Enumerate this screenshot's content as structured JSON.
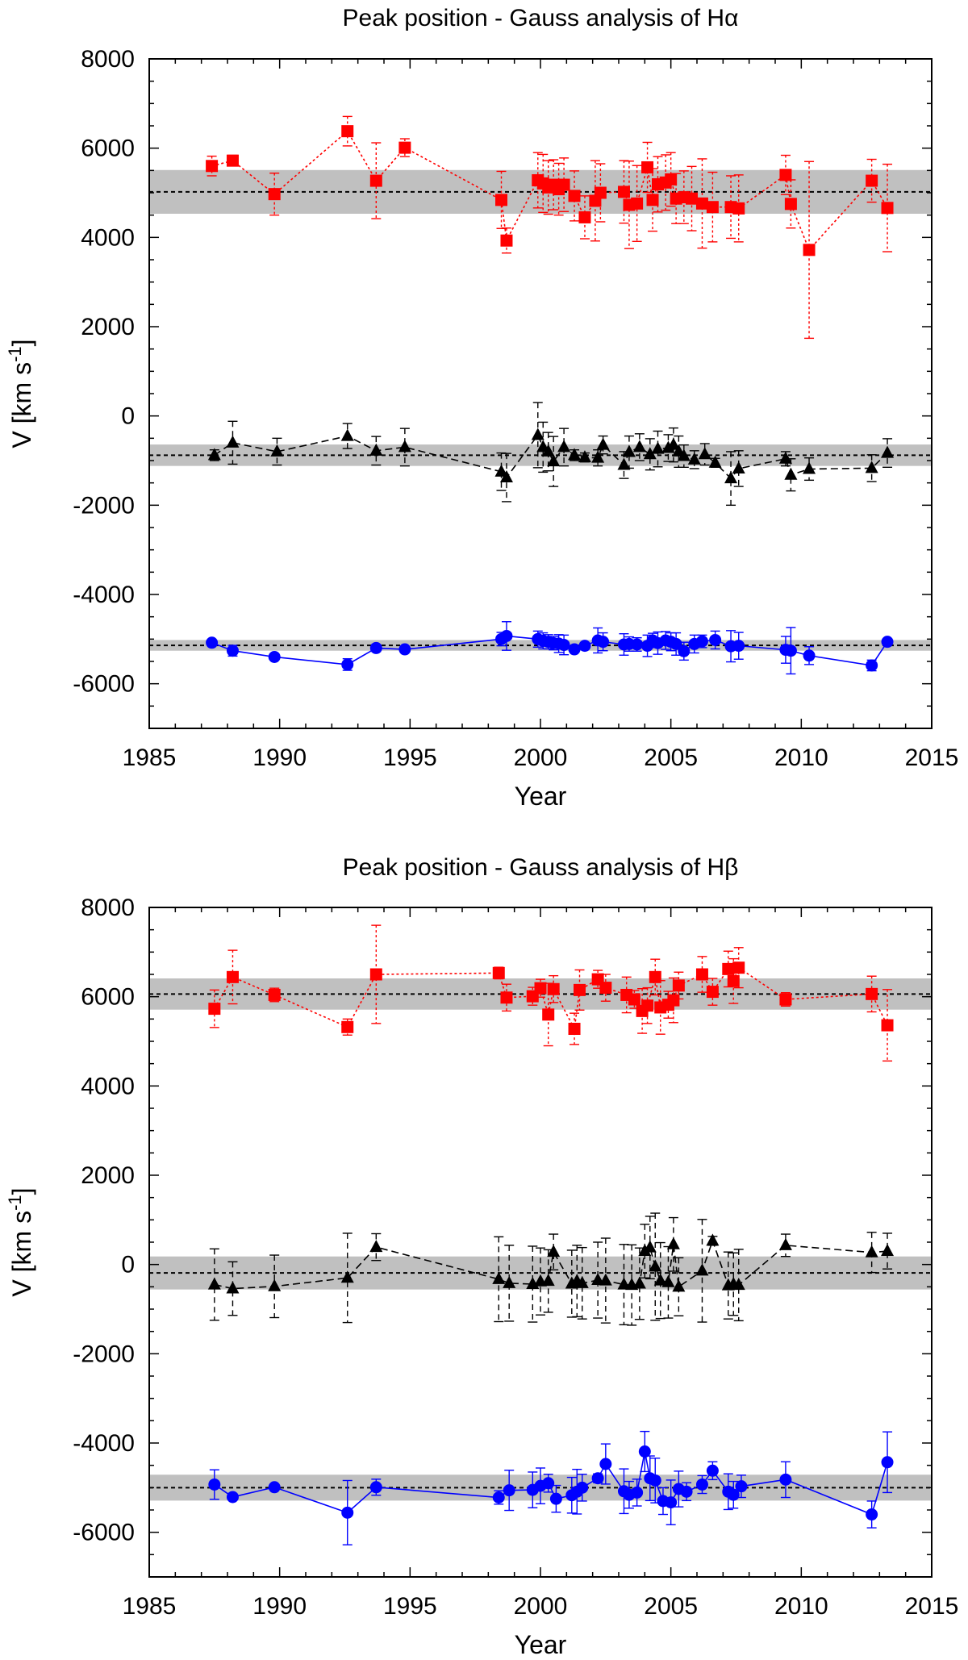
{
  "chart_data": [
    {
      "type": "scatter",
      "title": "Peak position - Gauss analysis of Hα",
      "xlabel": "Year",
      "ylabel": "V [km s",
      "ylabel_sup": "-1",
      "ylabel_close": "]",
      "xlim": [
        1985,
        2015
      ],
      "ylim": [
        -7000,
        8000
      ],
      "x_ticks": [
        "1985",
        "1990",
        "1995",
        "2000",
        "2005",
        "2010",
        "2015"
      ],
      "y_ticks": [
        "8000",
        "6000",
        "4000",
        "2000",
        "0",
        "-2000",
        "-4000",
        "-6000"
      ],
      "grid": false,
      "bands": [
        {
          "center": 5020,
          "half_width": 490,
          "color": "#c0c0c0"
        },
        {
          "center": -880,
          "half_width": 240,
          "color": "#c0c0c0"
        },
        {
          "center": -5140,
          "half_width": 120,
          "color": "#c0c0c0"
        }
      ],
      "series": [
        {
          "color": "#ff0000",
          "marker": "square",
          "line": "dotted",
          "x": [
            1987.4,
            1988.2,
            1989.8,
            1992.6,
            1993.7,
            1994.8,
            1998.5,
            1998.7,
            1999.9,
            2000.1,
            2000.3,
            2000.5,
            2000.7,
            2000.9,
            2001.3,
            2001.7,
            2002.1,
            2002.3,
            2003.2,
            2003.4,
            2003.7,
            2004.1,
            2004.3,
            2004.5,
            2004.8,
            2005.0,
            2005.2,
            2005.5,
            2005.8,
            2006.2,
            2006.6,
            2007.3,
            2007.6,
            2009.4,
            2009.6,
            2010.3,
            2012.7,
            2013.3
          ],
          "y": [
            5600,
            5720,
            4970,
            6380,
            5270,
            6010,
            4840,
            3930,
            5280,
            5210,
            5120,
            5180,
            5080,
            5180,
            4930,
            4450,
            4820,
            5000,
            5020,
            4730,
            4760,
            5570,
            4840,
            5190,
            5230,
            5300,
            4870,
            4900,
            4870,
            4760,
            4680,
            4680,
            4650,
            5400,
            4750,
            3720,
            5270,
            4660
          ],
          "err": [
            220,
            120,
            470,
            330,
            850,
            200,
            640,
            280,
            620,
            650,
            600,
            560,
            580,
            600,
            560,
            480,
            900,
            650,
            700,
            980,
            850,
            560,
            700,
            620,
            620,
            600,
            560,
            590,
            720,
            1000,
            780,
            700,
            750,
            440,
            540,
            1980,
            480,
            980
          ]
        },
        {
          "color": "#000000",
          "marker": "triangle",
          "line": "dashed",
          "x": [
            1987.5,
            1988.2,
            1989.9,
            1992.6,
            1993.7,
            1994.8,
            1998.5,
            1998.7,
            1999.9,
            2000.1,
            2000.3,
            2000.5,
            2000.9,
            2001.3,
            2001.7,
            2002.2,
            2002.4,
            2003.2,
            2003.4,
            2003.8,
            2004.2,
            2004.5,
            2004.9,
            2005.1,
            2005.3,
            2005.5,
            2005.9,
            2006.3,
            2006.7,
            2007.3,
            2007.6,
            2009.4,
            2009.6,
            2010.3,
            2012.7,
            2013.3
          ],
          "y": [
            -880,
            -600,
            -800,
            -450,
            -780,
            -700,
            -1250,
            -1380,
            -430,
            -700,
            -800,
            -1020,
            -700,
            -880,
            -930,
            -940,
            -650,
            -1100,
            -810,
            -700,
            -860,
            -740,
            -720,
            -650,
            -800,
            -900,
            -980,
            -860,
            -1050,
            -1400,
            -1180,
            -960,
            -1320,
            -1190,
            -1170,
            -830
          ],
          "err": [
            120,
            480,
            300,
            280,
            320,
            420,
            420,
            540,
            730,
            560,
            430,
            560,
            420,
            120,
            100,
            180,
            200,
            300,
            360,
            300,
            350,
            400,
            300,
            380,
            350,
            250,
            200,
            240,
            100,
            600,
            400,
            160,
            360,
            250,
            300,
            320
          ]
        },
        {
          "color": "#0000ff",
          "marker": "circle",
          "line": "solid",
          "x": [
            1987.4,
            1988.2,
            1989.8,
            1992.6,
            1993.7,
            1994.8,
            1998.5,
            1998.7,
            1999.9,
            2000.1,
            2000.3,
            2000.5,
            2000.7,
            2000.9,
            2001.3,
            2001.7,
            2002.2,
            2002.4,
            2003.2,
            2003.4,
            2003.7,
            2004.1,
            2004.3,
            2004.5,
            2004.8,
            2005.0,
            2005.2,
            2005.5,
            2005.9,
            2006.2,
            2006.7,
            2007.3,
            2007.6,
            2009.4,
            2009.6,
            2010.3,
            2012.7,
            2013.3
          ],
          "y": [
            -5080,
            -5260,
            -5400,
            -5570,
            -5200,
            -5230,
            -5000,
            -4930,
            -5000,
            -5040,
            -5060,
            -5090,
            -5100,
            -5130,
            -5230,
            -5150,
            -5030,
            -5060,
            -5120,
            -5110,
            -5120,
            -5150,
            -5030,
            -5090,
            -5030,
            -5060,
            -5110,
            -5270,
            -5110,
            -5050,
            -5020,
            -5160,
            -5150,
            -5240,
            -5260,
            -5370,
            -5590,
            -5060
          ],
          "err": [
            0,
            120,
            60,
            130,
            80,
            50,
            150,
            320,
            180,
            180,
            160,
            150,
            200,
            220,
            60,
            70,
            280,
            200,
            240,
            160,
            150,
            240,
            160,
            250,
            200,
            200,
            250,
            200,
            200,
            140,
            200,
            350,
            300,
            300,
            520,
            200,
            120,
            60
          ]
        }
      ]
    },
    {
      "type": "scatter",
      "title": "Peak position - Gauss analysis of Hβ",
      "xlabel": "Year",
      "ylabel": "V [km s",
      "ylabel_sup": "-1",
      "ylabel_close": "]",
      "xlim": [
        1985,
        2015
      ],
      "ylim": [
        -7000,
        8000
      ],
      "x_ticks": [
        "1985",
        "1990",
        "1995",
        "2000",
        "2005",
        "2010",
        "2015"
      ],
      "y_ticks": [
        "8000",
        "6000",
        "4000",
        "2000",
        "0",
        "-2000",
        "-4000",
        "-6000"
      ],
      "grid": false,
      "bands": [
        {
          "center": 6060,
          "half_width": 350,
          "color": "#c0c0c0"
        },
        {
          "center": -190,
          "half_width": 370,
          "color": "#c0c0c0"
        },
        {
          "center": -5000,
          "half_width": 290,
          "color": "#c0c0c0"
        }
      ],
      "series": [
        {
          "color": "#ff0000",
          "marker": "square",
          "line": "dotted",
          "x": [
            1987.5,
            1988.2,
            1989.8,
            1992.6,
            1993.7,
            1998.4,
            1998.7,
            1999.7,
            2000.0,
            2000.3,
            2000.5,
            2001.3,
            2001.5,
            2002.2,
            2002.5,
            2003.3,
            2003.6,
            2003.9,
            2004.1,
            2004.4,
            2004.6,
            2004.9,
            2005.1,
            2005.3,
            2006.2,
            2006.6,
            2007.2,
            2007.4,
            2007.6,
            2009.4,
            2012.7,
            2013.3
          ],
          "y": [
            5730,
            6440,
            6040,
            5320,
            6500,
            6530,
            5980,
            6010,
            6190,
            5600,
            6170,
            5280,
            6150,
            6390,
            6200,
            6040,
            5940,
            5680,
            5800,
            6440,
            5760,
            5820,
            5920,
            6250,
            6500,
            6110,
            6620,
            6350,
            6650,
            5940,
            6060,
            5360
          ],
          "err": [
            420,
            600,
            150,
            180,
            1100,
            130,
            300,
            200,
            200,
            700,
            300,
            350,
            450,
            200,
            300,
            400,
            200,
            500,
            400,
            400,
            600,
            300,
            500,
            300,
            400,
            300,
            400,
            500,
            450,
            150,
            400,
            800
          ]
        },
        {
          "color": "#000000",
          "marker": "triangle",
          "line": "dashed",
          "x": [
            1987.5,
            1988.2,
            1989.8,
            1992.6,
            1993.7,
            1998.4,
            1998.8,
            1999.7,
            2000.0,
            2000.3,
            2000.5,
            2001.2,
            2001.4,
            2001.6,
            2002.2,
            2002.5,
            2003.2,
            2003.5,
            2003.8,
            2004.0,
            2004.2,
            2004.4,
            2004.6,
            2004.9,
            2005.1,
            2005.3,
            2006.2,
            2006.6,
            2007.2,
            2007.4,
            2007.6,
            2009.4,
            2012.7,
            2013.3
          ],
          "y": [
            -450,
            -540,
            -490,
            -300,
            390,
            -330,
            -420,
            -440,
            -380,
            -370,
            280,
            -430,
            -370,
            -420,
            -350,
            -360,
            -450,
            -460,
            -430,
            300,
            380,
            -50,
            -360,
            -400,
            450,
            -500,
            -140,
            530,
            -470,
            -440,
            -460,
            430,
            270,
            300
          ],
          "err": [
            800,
            600,
            700,
            1000,
            300,
            950,
            850,
            850,
            750,
            700,
            400,
            750,
            800,
            800,
            850,
            950,
            900,
            900,
            800,
            600,
            700,
            1200,
            850,
            800,
            600,
            650,
            1150,
            100,
            750,
            700,
            800,
            250,
            450,
            400
          ]
        },
        {
          "color": "#0000ff",
          "marker": "circle",
          "line": "solid",
          "x": [
            1987.5,
            1988.2,
            1989.8,
            1992.6,
            1993.7,
            1998.4,
            1998.8,
            1999.7,
            2000.0,
            2000.3,
            2000.6,
            2001.2,
            2001.4,
            2001.6,
            2002.2,
            2002.5,
            2003.2,
            2003.4,
            2003.7,
            2004.0,
            2004.2,
            2004.4,
            2004.7,
            2005.0,
            2005.3,
            2005.6,
            2006.2,
            2006.6,
            2007.2,
            2007.4,
            2007.7,
            2009.4,
            2012.7,
            2013.3
          ],
          "y": [
            -4930,
            -5210,
            -4990,
            -5560,
            -4990,
            -5220,
            -5060,
            -5050,
            -4960,
            -4900,
            -5250,
            -5170,
            -5090,
            -5000,
            -4790,
            -4470,
            -5080,
            -5160,
            -5110,
            -4190,
            -4790,
            -4840,
            -5300,
            -5330,
            -5030,
            -5090,
            -4930,
            -4620,
            -5090,
            -5160,
            -4970,
            -4820,
            -5600,
            -4430
          ],
          "err": [
            330,
            60,
            60,
            720,
            180,
            150,
            450,
            400,
            400,
            200,
            300,
            400,
            500,
            300,
            100,
            450,
            500,
            300,
            300,
            450,
            500,
            500,
            300,
            500,
            400,
            200,
            200,
            200,
            400,
            300,
            250,
            400,
            300,
            680
          ]
        }
      ]
    }
  ]
}
